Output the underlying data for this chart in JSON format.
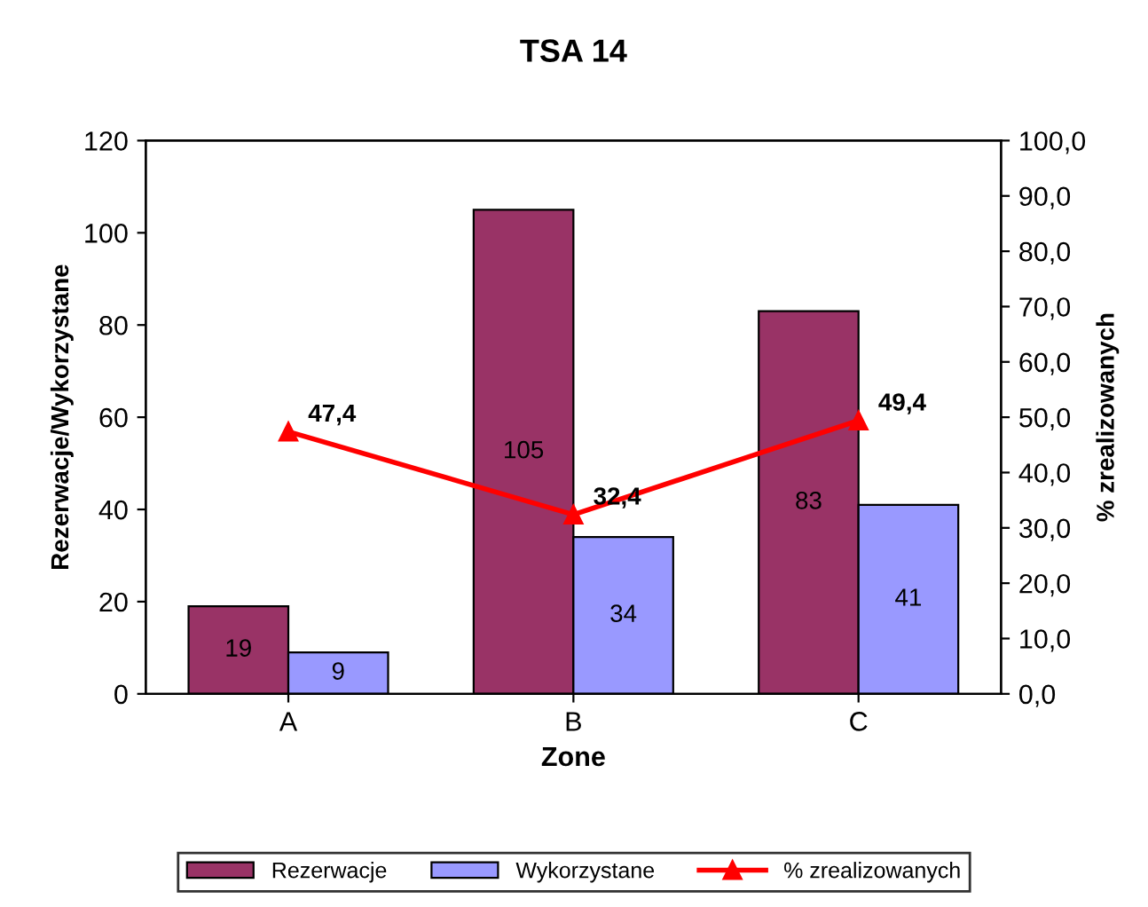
{
  "chart_data": {
    "type": "bar",
    "title": "TSA 14",
    "xlabel": "Zone",
    "ylabel": "Rezerwacje/Wykorzystane",
    "y2label": "% zrealizowanych",
    "categories": [
      "A",
      "B",
      "C"
    ],
    "series": [
      {
        "name": "Rezerwacje",
        "color": "#993366",
        "values": [
          19,
          105,
          83
        ],
        "data_labels": true
      },
      {
        "name": "Wykorzystane",
        "color": "#9999ff",
        "values": [
          9,
          34,
          41
        ],
        "data_labels": true
      },
      {
        "name": "% zrealizowanych",
        "type": "line",
        "axis": "y2",
        "color": "#ff0000",
        "values": [
          47.4,
          32.4,
          49.4
        ],
        "value_labels": [
          "47,4",
          "32,4",
          "49,4"
        ],
        "marker": "triangle",
        "line_style": "solid"
      }
    ],
    "ylim": [
      0,
      120
    ],
    "yticks": [
      0,
      20,
      40,
      60,
      80,
      100,
      120
    ],
    "y2lim": [
      0,
      100
    ],
    "y2ticks": [
      {
        "value": 0,
        "label": "0,0"
      },
      {
        "value": 10,
        "label": "10,0"
      },
      {
        "value": 20,
        "label": "20,0"
      },
      {
        "value": 30,
        "label": "30,0"
      },
      {
        "value": 40,
        "label": "40,0"
      },
      {
        "value": 50,
        "label": "50,0"
      },
      {
        "value": 60,
        "label": "60,0"
      },
      {
        "value": 70,
        "label": "70,0"
      },
      {
        "value": 80,
        "label": "80,0"
      },
      {
        "value": 90,
        "label": "90,0"
      },
      {
        "value": 100,
        "label": "100,0"
      }
    ],
    "grid": false,
    "legend": "bottom"
  }
}
